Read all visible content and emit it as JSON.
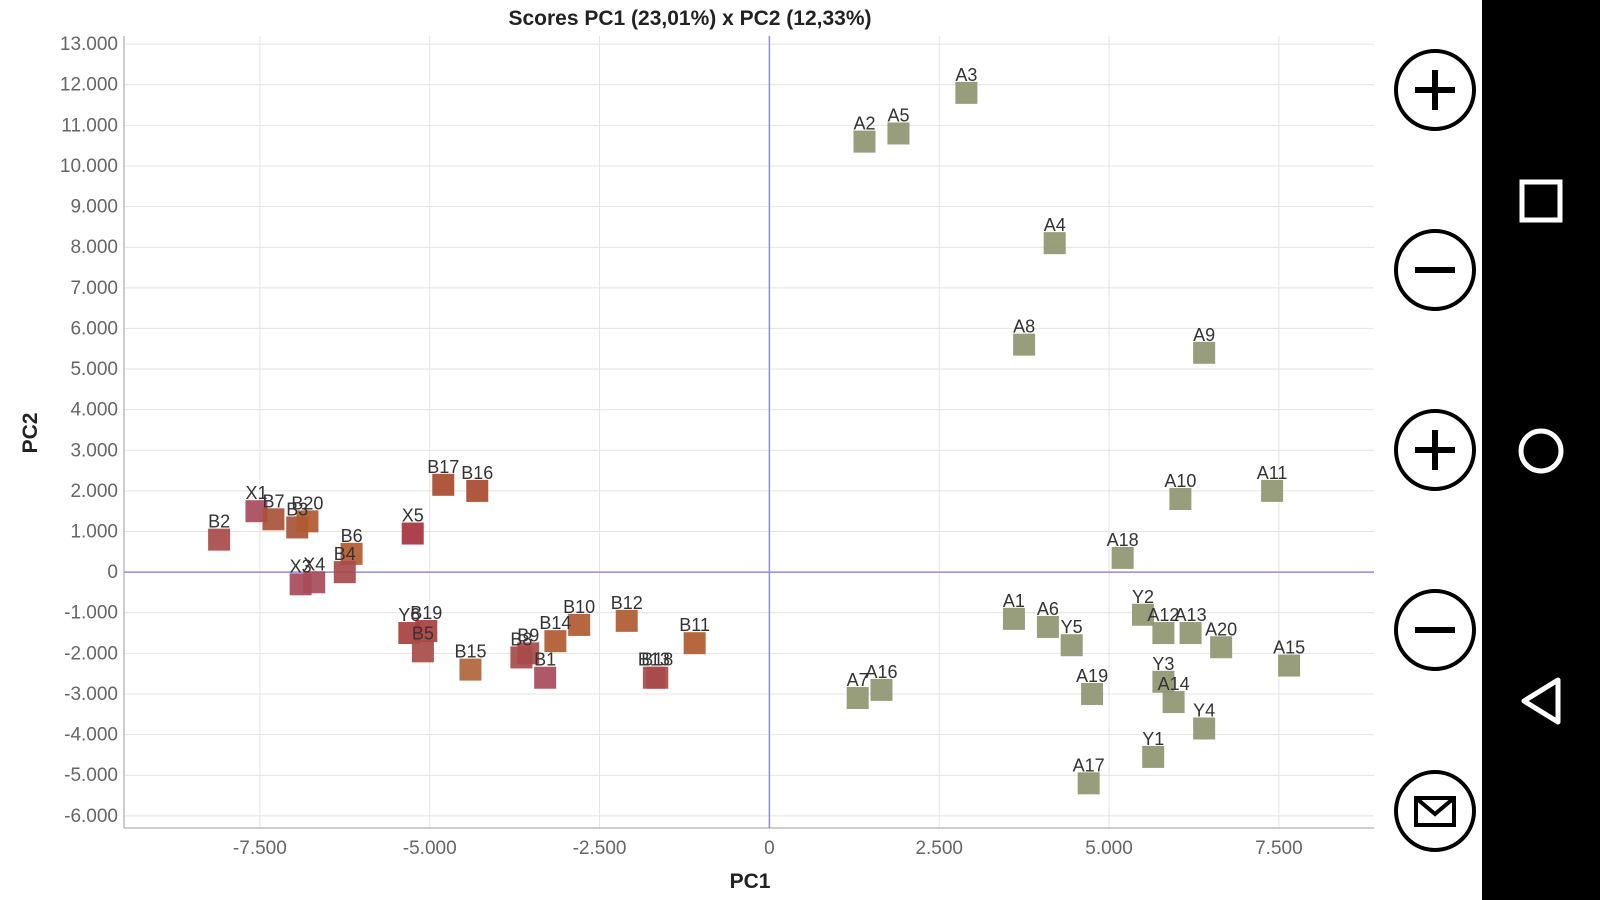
{
  "chart_data": {
    "type": "scatter",
    "title": "Scores PC1 (23,01%) x PC2 (12,33%)",
    "xlabel": "PC1",
    "ylabel": "PC2",
    "xlim": [
      -9500,
      8900
    ],
    "ylim": [
      -6300,
      13200
    ],
    "grid": true,
    "x_ticks": [
      {
        "value": -7500,
        "label": "-7.500"
      },
      {
        "value": -5000,
        "label": "-5.000"
      },
      {
        "value": -2500,
        "label": "-2.500"
      },
      {
        "value": 0,
        "label": "0"
      },
      {
        "value": 2500,
        "label": "2.500"
      },
      {
        "value": 5000,
        "label": "5.000"
      },
      {
        "value": 7500,
        "label": "7.500"
      }
    ],
    "y_ticks": [
      {
        "value": 13000,
        "label": "13.000"
      },
      {
        "value": 12000,
        "label": "12.000"
      },
      {
        "value": 11000,
        "label": "11.000"
      },
      {
        "value": 10000,
        "label": "10.000"
      },
      {
        "value": 9000,
        "label": "9.000"
      },
      {
        "value": 8000,
        "label": "8.000"
      },
      {
        "value": 7000,
        "label": "7.000"
      },
      {
        "value": 6000,
        "label": "6.000"
      },
      {
        "value": 5000,
        "label": "5.000"
      },
      {
        "value": 4000,
        "label": "4.000"
      },
      {
        "value": 3000,
        "label": "3.000"
      },
      {
        "value": 2000,
        "label": "2.000"
      },
      {
        "value": 1000,
        "label": "1.000"
      },
      {
        "value": 0,
        "label": "0"
      },
      {
        "value": -1000,
        "label": "-1.000"
      },
      {
        "value": -2000,
        "label": "-2.000"
      },
      {
        "value": -3000,
        "label": "-3.000"
      },
      {
        "value": -4000,
        "label": "-4.000"
      },
      {
        "value": -5000,
        "label": "-5.000"
      },
      {
        "value": -6000,
        "label": "-6.000"
      }
    ],
    "points": [
      {
        "label": "A3",
        "x": 2900,
        "y": 11800,
        "color": "#8f9670"
      },
      {
        "label": "A2",
        "x": 1400,
        "y": 10600,
        "color": "#8f9670"
      },
      {
        "label": "A5",
        "x": 1900,
        "y": 10800,
        "color": "#8f9670"
      },
      {
        "label": "A4",
        "x": 4200,
        "y": 8100,
        "color": "#8f9670"
      },
      {
        "label": "A8",
        "x": 3750,
        "y": 5600,
        "color": "#8f9670"
      },
      {
        "label": "A9",
        "x": 6400,
        "y": 5400,
        "color": "#8f9670"
      },
      {
        "label": "A10",
        "x": 6050,
        "y": 1800,
        "color": "#8f9670"
      },
      {
        "label": "A11",
        "x": 7400,
        "y": 2000,
        "color": "#8f9670"
      },
      {
        "label": "A18",
        "x": 5200,
        "y": 350,
        "color": "#8f9670"
      },
      {
        "label": "A1",
        "x": 3600,
        "y": -1150,
        "color": "#8f9670"
      },
      {
        "label": "A6",
        "x": 4100,
        "y": -1350,
        "color": "#8f9670"
      },
      {
        "label": "Y5",
        "x": 4450,
        "y": -1800,
        "color": "#8f9670"
      },
      {
        "label": "Y2",
        "x": 5500,
        "y": -1050,
        "color": "#8f9670"
      },
      {
        "label": "A12",
        "x": 5800,
        "y": -1500,
        "color": "#8f9670"
      },
      {
        "label": "A13",
        "x": 6200,
        "y": -1500,
        "color": "#8f9670"
      },
      {
        "label": "A20",
        "x": 6650,
        "y": -1850,
        "color": "#8f9670"
      },
      {
        "label": "A15",
        "x": 7650,
        "y": -2300,
        "color": "#8f9670"
      },
      {
        "label": "Y3",
        "x": 5800,
        "y": -2700,
        "color": "#8f9670"
      },
      {
        "label": "A14",
        "x": 5950,
        "y": -3200,
        "color": "#8f9670"
      },
      {
        "label": "A19",
        "x": 4750,
        "y": -3000,
        "color": "#8f9670"
      },
      {
        "label": "Y4",
        "x": 6400,
        "y": -3850,
        "color": "#8f9670"
      },
      {
        "label": "Y1",
        "x": 5650,
        "y": -4550,
        "color": "#8f9670"
      },
      {
        "label": "A17",
        "x": 4700,
        "y": -5200,
        "color": "#8f9670"
      },
      {
        "label": "A7",
        "x": 1300,
        "y": -3100,
        "color": "#8f9670"
      },
      {
        "label": "A16",
        "x": 1650,
        "y": -2900,
        "color": "#8f9670"
      },
      {
        "label": "B17",
        "x": -4800,
        "y": 2150,
        "color": "#a84a2c"
      },
      {
        "label": "B16",
        "x": -4300,
        "y": 2000,
        "color": "#a84a2c"
      },
      {
        "label": "X5",
        "x": -5250,
        "y": 950,
        "color": "#a5333d"
      },
      {
        "label": "B6",
        "x": -6150,
        "y": 450,
        "color": "#b25b30"
      },
      {
        "label": "B4",
        "x": -6250,
        "y": 0,
        "color": "#a84a4a"
      },
      {
        "label": "B2",
        "x": -8100,
        "y": 800,
        "color": "#a84a4a"
      },
      {
        "label": "X1",
        "x": -7550,
        "y": 1500,
        "color": "#a84a5a"
      },
      {
        "label": "B7",
        "x": -7300,
        "y": 1300,
        "color": "#a8523a"
      },
      {
        "label": "B3",
        "x": -6950,
        "y": 1100,
        "color": "#a8523a"
      },
      {
        "label": "B20",
        "x": -6800,
        "y": 1250,
        "color": "#b05a30"
      },
      {
        "label": "X3",
        "x": -6900,
        "y": -300,
        "color": "#a84a5a"
      },
      {
        "label": "X4",
        "x": -6700,
        "y": -250,
        "color": "#a84a5a"
      },
      {
        "label": "Y6",
        "x": -5300,
        "y": -1500,
        "color": "#a8403e"
      },
      {
        "label": "B19",
        "x": -5050,
        "y": -1450,
        "color": "#a8403e"
      },
      {
        "label": "B5",
        "x": -5100,
        "y": -1950,
        "color": "#a84a4a"
      },
      {
        "label": "B15",
        "x": -4400,
        "y": -2400,
        "color": "#b0653c"
      },
      {
        "label": "B8",
        "x": -3650,
        "y": -2100,
        "color": "#a84a4a"
      },
      {
        "label": "B9",
        "x": -3550,
        "y": -2000,
        "color": "#a84a4a"
      },
      {
        "label": "B1",
        "x": -3300,
        "y": -2600,
        "color": "#a84a5a"
      },
      {
        "label": "B14",
        "x": -3150,
        "y": -1700,
        "color": "#b05a30"
      },
      {
        "label": "B10",
        "x": -2800,
        "y": -1300,
        "color": "#b05a30"
      },
      {
        "label": "B12",
        "x": -2100,
        "y": -1200,
        "color": "#b05a30"
      },
      {
        "label": "B13",
        "x": -1700,
        "y": -2600,
        "color": "#a84a4a"
      },
      {
        "label": "B18",
        "x": -1650,
        "y": -2600,
        "color": "#a84a4a"
      },
      {
        "label": "B11",
        "x": -1100,
        "y": -1750,
        "color": "#b05a30"
      }
    ]
  },
  "controls": {
    "zoom_in_x": "plus-icon",
    "zoom_out_x": "minus-icon",
    "zoom_in_y": "plus-icon",
    "zoom_out_y": "minus-icon",
    "share": "envelope-icon"
  },
  "navbar": {
    "recents": "square-icon",
    "home": "circle-icon",
    "back": "triangle-back-icon"
  }
}
